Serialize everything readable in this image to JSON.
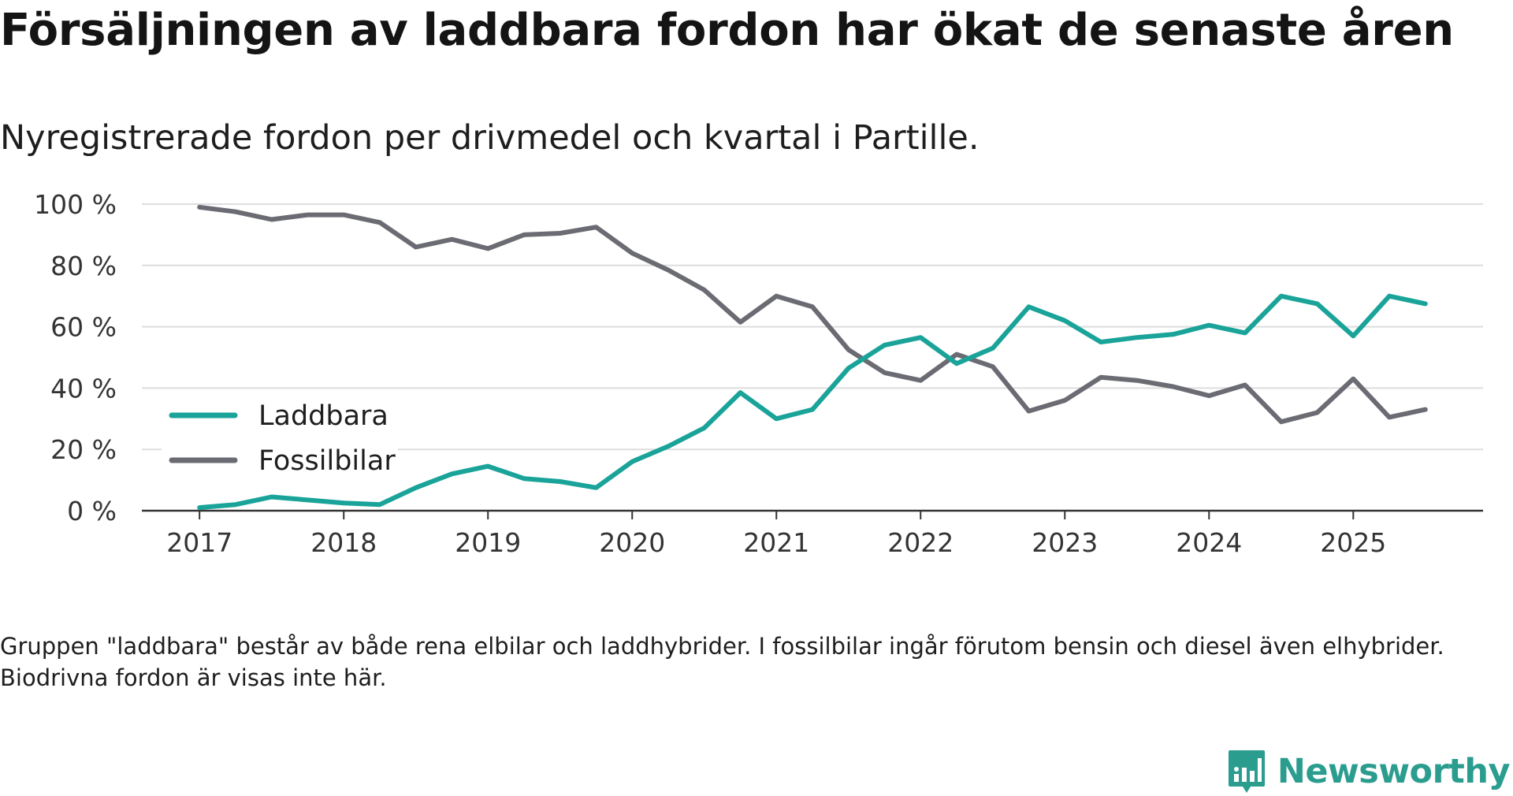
{
  "title": "Försäljningen av laddbara fordon har ökat de senaste åren",
  "subtitle": "Nyregistrerade fordon per drivmedel och kvartal i Partille.",
  "footnote": "Gruppen \"laddbara\" består av både rena elbilar och laddhybrider. I fossilbilar ingår förutom bensin och diesel även elhybrider. Biodrivna fordon är visas inte här.",
  "brand": {
    "name": "Newsworthy",
    "icon": "newsworthy-logo-icon"
  },
  "colors": {
    "laddbara": "#1aa399",
    "fossil": "#6b6b73",
    "grid": "#dddddd",
    "axis": "#333333"
  },
  "chart_data": {
    "type": "line",
    "title": "Försäljningen av laddbara fordon har ökat de senaste åren",
    "xlabel": "",
    "ylabel": "",
    "ylim": [
      0,
      100
    ],
    "xlim": [
      2016.6,
      2025.9
    ],
    "grid": true,
    "legend_position": "left-middle",
    "y_ticks": [
      0,
      20,
      40,
      60,
      80,
      100
    ],
    "y_tick_labels": [
      "0 %",
      "20 %",
      "40 %",
      "60 %",
      "80 %",
      "100 %"
    ],
    "x_ticks": [
      2017,
      2018,
      2019,
      2020,
      2021,
      2022,
      2023,
      2024,
      2025
    ],
    "x_tick_labels": [
      "2017",
      "2018",
      "2019",
      "2020",
      "2021",
      "2022",
      "2023",
      "2024",
      "2025"
    ],
    "x": [
      2017.0,
      2017.25,
      2017.5,
      2017.75,
      2018.0,
      2018.25,
      2018.5,
      2018.75,
      2019.0,
      2019.25,
      2019.5,
      2019.75,
      2020.0,
      2020.25,
      2020.5,
      2020.75,
      2021.0,
      2021.25,
      2021.5,
      2021.75,
      2022.0,
      2022.25,
      2022.5,
      2022.75,
      2023.0,
      2023.25,
      2023.5,
      2023.75,
      2024.0,
      2024.25,
      2024.5,
      2024.75,
      2025.0,
      2025.25,
      2025.5
    ],
    "series": [
      {
        "name": "Laddbara",
        "color": "#1aa399",
        "values": [
          1,
          2,
          4.5,
          3.5,
          2.5,
          2,
          7.5,
          12,
          14.5,
          10.5,
          9.5,
          7.5,
          16,
          21,
          27,
          38.5,
          30,
          33,
          46.5,
          54,
          56.5,
          48,
          53,
          66.5,
          62,
          55,
          56.5,
          57.5,
          60.5,
          58,
          70,
          67.5,
          57,
          70,
          67.5
        ]
      },
      {
        "name": "Fossilbilar",
        "color": "#6b6b73",
        "values": [
          99,
          97.5,
          95,
          96.5,
          96.5,
          94,
          86,
          88.5,
          85.5,
          90,
          90.5,
          92.5,
          84,
          78.5,
          72,
          61.5,
          70,
          66.5,
          52.5,
          45,
          42.5,
          51,
          47,
          32.5,
          36,
          43.5,
          42.5,
          40.5,
          37.5,
          41,
          29,
          32,
          43,
          30.5,
          33
        ]
      }
    ]
  }
}
